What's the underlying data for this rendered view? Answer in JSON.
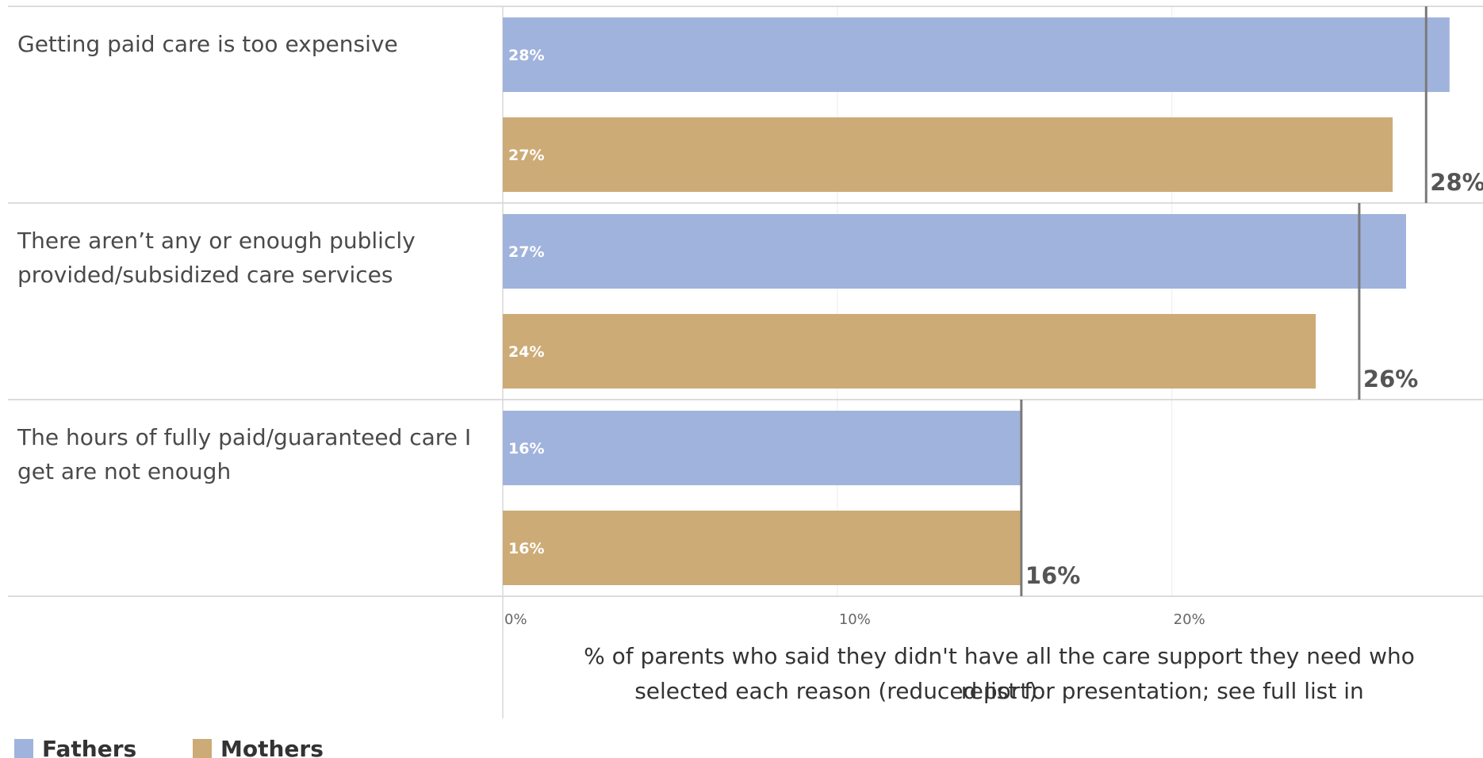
{
  "chart_data": {
    "type": "bar",
    "orientation": "horizontal",
    "categories": [
      "Getting paid care is too expensive",
      "There aren’t any or enough publicly provided/subsidized care services",
      "The hours of fully paid/guaranteed care I get are not enough"
    ],
    "series": [
      {
        "name": "Fathers",
        "color": "#a0b3dc",
        "values": [
          28.3,
          27,
          15.5
        ],
        "labels": [
          "28%",
          "27%",
          "16%"
        ]
      },
      {
        "name": "Mothers",
        "color": "#cdab77",
        "values": [
          26.6,
          24.3,
          15.5
        ],
        "labels": [
          "27%",
          "24%",
          "16%"
        ]
      }
    ],
    "totals": {
      "values": [
        27.6,
        25.6,
        15.5
      ],
      "labels": [
        "28%",
        "26%",
        "16%"
      ]
    },
    "xticks": [
      {
        "value": 0,
        "label": "0%"
      },
      {
        "value": 10,
        "label": "10%"
      },
      {
        "value": 20,
        "label": "20%"
      }
    ],
    "xlim": [
      0,
      29.3
    ],
    "xlabel": "% of parents who said they didn't have all the care support they need who selected each reason (reduced list for presentation; see full list in report)",
    "grid": true,
    "legend": {
      "position": "bottom-left",
      "items": [
        "Fathers",
        "Mothers"
      ]
    }
  }
}
